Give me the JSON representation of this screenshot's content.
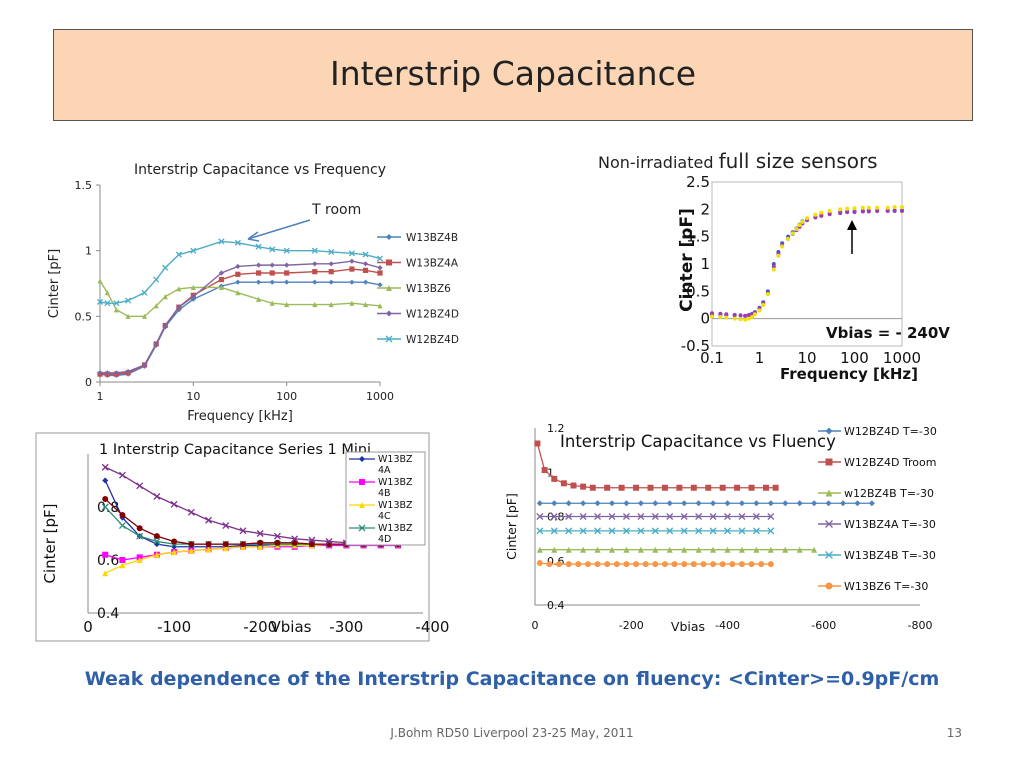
{
  "slide": {
    "title": "Interstrip Capacitance",
    "conclusion": "Weak dependence of the Interstrip Capacitance on fluency: <Cinter>=0.9pF/cm",
    "footer": "J.Bohm RD50 Liverpool 23-25 May, 2011",
    "page": "13"
  },
  "chart_data": [
    {
      "type": "line",
      "title": "Interstrip Capacitance vs Frequency",
      "xlabel": "Frequency [kHz]",
      "ylabel": "Cinter [pF]",
      "xscale": "log",
      "xlim": [
        1,
        1000
      ],
      "ylim": [
        0,
        1.5
      ],
      "xticks": [
        "1",
        "10",
        "100",
        "1000"
      ],
      "yticks": [
        "0",
        "0.5",
        "1",
        "1.5"
      ],
      "annotation": "T room",
      "legend_position": "right",
      "x": [
        1,
        1.2,
        1.5,
        2,
        3,
        4,
        5,
        7,
        10,
        20,
        30,
        50,
        70,
        100,
        200,
        300,
        500,
        700,
        1000
      ],
      "series": [
        {
          "name": "W13BZ4B",
          "color": "#4f81bd",
          "marker": "diamond",
          "values": [
            0.06,
            0.05,
            0.05,
            0.06,
            0.12,
            0.28,
            0.42,
            0.55,
            0.63,
            0.73,
            0.76,
            0.76,
            0.76,
            0.76,
            0.76,
            0.76,
            0.76,
            0.76,
            0.74
          ]
        },
        {
          "name": "W13BZ4A",
          "color": "#c0504d",
          "marker": "square",
          "values": [
            0.06,
            0.06,
            0.06,
            0.07,
            0.13,
            0.29,
            0.43,
            0.57,
            0.66,
            0.78,
            0.82,
            0.83,
            0.83,
            0.83,
            0.84,
            0.84,
            0.86,
            0.85,
            0.83
          ]
        },
        {
          "name": "W13BZ6",
          "color": "#9bbb59",
          "marker": "triangle",
          "values": [
            0.77,
            0.68,
            0.55,
            0.5,
            0.5,
            0.58,
            0.65,
            0.71,
            0.72,
            0.72,
            0.68,
            0.63,
            0.6,
            0.59,
            0.59,
            0.59,
            0.6,
            0.59,
            0.58
          ]
        },
        {
          "name": "W12BZ4D",
          "color": "#8064a2",
          "marker": "diamond",
          "values": [
            0.07,
            0.07,
            0.07,
            0.08,
            0.13,
            0.29,
            0.43,
            0.57,
            0.65,
            0.83,
            0.88,
            0.89,
            0.89,
            0.89,
            0.9,
            0.9,
            0.92,
            0.9,
            0.87
          ]
        },
        {
          "name": "W12BZ4D",
          "color": "#4bacc6",
          "marker": "x",
          "values": [
            0.61,
            0.6,
            0.6,
            0.62,
            0.68,
            0.78,
            0.87,
            0.97,
            1.0,
            1.07,
            1.06,
            1.03,
            1.01,
            1.0,
            1.0,
            0.99,
            0.98,
            0.97,
            0.94
          ]
        }
      ]
    },
    {
      "type": "scatter",
      "title": "Non-irradiated full size sensors",
      "title_part1": "Non-irradiated",
      "title_part2": "full size sensors",
      "xlabel": "Frequency [kHz]",
      "ylabel": "Cinter  [pF]",
      "xscale": "log",
      "xlim": [
        0.1,
        1000
      ],
      "ylim": [
        -0.5,
        2.5
      ],
      "xticks": [
        "0.1",
        "1",
        "10",
        "100",
        "1000"
      ],
      "yticks": [
        "-0.5",
        "0",
        "0.5",
        "1",
        "1.5",
        "2",
        "2.5"
      ],
      "annotation": "Vbias = - 240V",
      "x": [
        0.1,
        0.15,
        0.2,
        0.3,
        0.4,
        0.5,
        0.6,
        0.7,
        0.8,
        1,
        1.2,
        1.5,
        2,
        2.5,
        3,
        4,
        5,
        6,
        7,
        8,
        10,
        15,
        20,
        30,
        50,
        70,
        100,
        150,
        200,
        300,
        500,
        700,
        1000
      ],
      "series": [
        {
          "name": "",
          "color": "#3b5fc0",
          "values": [
            0.07,
            0.07,
            0.06,
            0.06,
            0.06,
            0.05,
            0.07,
            0.09,
            0.12,
            0.2,
            0.3,
            0.5,
            1.0,
            1.22,
            1.38,
            1.5,
            1.58,
            1.65,
            1.72,
            1.78,
            1.82,
            1.87,
            1.9,
            1.93,
            1.95,
            1.96,
            1.97,
            1.97,
            1.98,
            1.98,
            1.98,
            1.98,
            1.98
          ]
        },
        {
          "name": "",
          "color": "#a03ab8",
          "values": [
            0.1,
            0.09,
            0.08,
            0.07,
            0.06,
            0.05,
            0.06,
            0.08,
            0.11,
            0.18,
            0.28,
            0.46,
            0.95,
            1.18,
            1.34,
            1.46,
            1.55,
            1.62,
            1.68,
            1.74,
            1.8,
            1.85,
            1.88,
            1.91,
            1.93,
            1.95,
            1.95,
            1.96,
            1.96,
            1.97,
            1.97,
            1.97,
            1.97
          ]
        },
        {
          "name": "",
          "color": "#f2e000",
          "values": [
            0.04,
            0.03,
            0.02,
            0.0,
            -0.01,
            -0.02,
            0.0,
            0.03,
            0.08,
            0.15,
            0.25,
            0.45,
            0.9,
            1.15,
            1.32,
            1.46,
            1.56,
            1.64,
            1.71,
            1.77,
            1.84,
            1.9,
            1.94,
            1.97,
            2.0,
            2.01,
            2.02,
            2.03,
            2.03,
            2.03,
            2.03,
            2.04,
            2.04
          ]
        }
      ]
    },
    {
      "type": "line",
      "title": "Interstrip Capacitance Series 1 Mini",
      "title_prefix": "1",
      "xlabel": "Vbias",
      "ylabel": "Cinter [pF]",
      "xlim": [
        0,
        -400
      ],
      "ylim": [
        0.4,
        1.0
      ],
      "xticks": [
        "0",
        "-100",
        "-200",
        "-300",
        "-400"
      ],
      "ytick_labels": [
        "0.4",
        "0.6",
        "0.8"
      ],
      "legend_position": "top-right",
      "x": [
        -20,
        -40,
        -60,
        -80,
        -100,
        -120,
        -140,
        -160,
        -180,
        -200,
        -220,
        -240,
        -260,
        -280,
        -300,
        -320,
        -340,
        -360
      ],
      "series": [
        {
          "name": "W13BZ 4A",
          "name_lines": [
            "W13BZ",
            "4A"
          ],
          "color": "#1f2fa8",
          "marker": "diamond",
          "values": [
            0.9,
            0.76,
            0.69,
            0.66,
            0.65,
            0.65,
            0.65,
            0.65,
            0.655,
            0.655,
            0.66,
            0.66,
            0.66,
            0.66,
            0.66,
            0.66,
            0.66,
            0.66
          ]
        },
        {
          "name": "W13BZ 4B",
          "name_lines": [
            "W13BZ",
            "4B"
          ],
          "color": "#ff00ff",
          "marker": "square",
          "values": [
            0.62,
            0.6,
            0.61,
            0.62,
            0.63,
            0.635,
            0.64,
            0.645,
            0.65,
            0.65,
            0.65,
            0.65,
            0.655,
            0.655,
            0.655,
            0.655,
            0.655,
            0.655
          ]
        },
        {
          "name": "W13BZ 4C",
          "name_lines": [
            "W13BZ",
            "4C"
          ],
          "color": "#ffd700",
          "marker": "triangle",
          "values": [
            0.55,
            0.58,
            0.6,
            0.62,
            0.63,
            0.635,
            0.64,
            0.645,
            0.65,
            0.65,
            0.655,
            0.655,
            0.655,
            0.66,
            0.66,
            0.66,
            0.66,
            0.66
          ]
        },
        {
          "name": "W13BZ 4D",
          "name_lines": [
            "W13BZ",
            "4D"
          ],
          "color": "#2e8b7a",
          "marker": "x",
          "values": [
            0.8,
            0.73,
            0.69,
            0.67,
            0.66,
            0.66,
            0.66,
            0.66,
            0.66,
            0.66,
            0.66,
            0.66,
            0.66,
            0.66,
            0.66,
            0.66,
            0.66,
            0.66
          ]
        },
        {
          "name": "",
          "color": "#800000",
          "marker": "circle",
          "values": [
            0.83,
            0.77,
            0.72,
            0.69,
            0.67,
            0.66,
            0.66,
            0.66,
            0.66,
            0.665,
            0.665,
            0.665,
            0.66,
            0.66,
            0.66,
            0.66,
            0.66,
            0.66
          ]
        },
        {
          "name": "",
          "color": "#7d2e8c",
          "marker": "x",
          "values": [
            0.95,
            0.92,
            0.88,
            0.84,
            0.81,
            0.78,
            0.75,
            0.73,
            0.71,
            0.7,
            0.69,
            0.68,
            0.675,
            0.67,
            0.665,
            0.66,
            0.66,
            0.66
          ]
        }
      ]
    },
    {
      "type": "line",
      "title": "Interstrip Capacitance vs Fluency",
      "xlabel": "Vbias",
      "ylabel": "Cinter [pF]",
      "xlim": [
        0,
        -800
      ],
      "ylim": [
        0.4,
        1.2
      ],
      "xticks": [
        "0",
        "-200",
        "-400",
        "-600",
        "-800"
      ],
      "yticks": [
        "0.4",
        "0.6",
        "0.8",
        "1",
        "1.2"
      ],
      "legend_position": "right",
      "series": [
        {
          "name": "W12BZ4D T=-30",
          "color": "#4f81bd",
          "marker": "diamond",
          "x": [
            -10,
            -40,
            -70,
            -100,
            -130,
            -160,
            -190,
            -220,
            -250,
            -280,
            -310,
            -340,
            -370,
            -400,
            -430,
            -460,
            -490,
            -520,
            -550,
            -580,
            -610,
            -640,
            -670,
            -700
          ],
          "values": [
            0.86,
            0.86,
            0.86,
            0.86,
            0.86,
            0.86,
            0.86,
            0.86,
            0.86,
            0.86,
            0.86,
            0.86,
            0.86,
            0.86,
            0.86,
            0.86,
            0.86,
            0.86,
            0.86,
            0.86,
            0.86,
            0.86,
            0.86,
            0.86
          ]
        },
        {
          "name": "W12BZ4D Troom",
          "color": "#c0504d",
          "marker": "square",
          "x": [
            -5,
            -20,
            -40,
            -60,
            -80,
            -100,
            -120,
            -150,
            -180,
            -210,
            -240,
            -270,
            -300,
            -330,
            -360,
            -390,
            -420,
            -450,
            -480,
            -500
          ],
          "values": [
            1.13,
            1.01,
            0.97,
            0.95,
            0.94,
            0.935,
            0.93,
            0.93,
            0.93,
            0.93,
            0.93,
            0.93,
            0.93,
            0.93,
            0.93,
            0.93,
            0.93,
            0.93,
            0.93,
            0.93
          ]
        },
        {
          "name": "w12BZ4B T=-30",
          "color": "#9bbb59",
          "marker": "triangle",
          "x": [
            -10,
            -40,
            -70,
            -100,
            -130,
            -160,
            -190,
            -220,
            -250,
            -280,
            -310,
            -340,
            -370,
            -400,
            -430,
            -460,
            -490,
            -520,
            -550,
            -580
          ],
          "values": [
            0.65,
            0.65,
            0.65,
            0.65,
            0.65,
            0.65,
            0.65,
            0.65,
            0.65,
            0.65,
            0.65,
            0.65,
            0.65,
            0.65,
            0.65,
            0.65,
            0.65,
            0.65,
            0.65,
            0.65
          ]
        },
        {
          "name": "W13BZ4A T=-30",
          "color": "#8064a2",
          "marker": "x",
          "x": [
            -10,
            -40,
            -70,
            -100,
            -130,
            -160,
            -190,
            -220,
            -250,
            -280,
            -310,
            -340,
            -370,
            -400,
            -430,
            -460,
            -490
          ],
          "values": [
            0.8,
            0.8,
            0.8,
            0.8,
            0.8,
            0.8,
            0.8,
            0.8,
            0.8,
            0.8,
            0.8,
            0.8,
            0.8,
            0.8,
            0.8,
            0.8,
            0.8
          ]
        },
        {
          "name": "W13BZ4B T=-30",
          "color": "#4bacc6",
          "marker": "x",
          "x": [
            -10,
            -40,
            -70,
            -100,
            -130,
            -160,
            -190,
            -220,
            -250,
            -280,
            -310,
            -340,
            -370,
            -400,
            -430,
            -460,
            -490
          ],
          "values": [
            0.735,
            0.735,
            0.735,
            0.735,
            0.735,
            0.735,
            0.735,
            0.735,
            0.735,
            0.735,
            0.735,
            0.735,
            0.735,
            0.735,
            0.735,
            0.735,
            0.735
          ]
        },
        {
          "name": "W13BZ6 T=-30",
          "color": "#f79646",
          "marker": "circle",
          "x": [
            -10,
            -30,
            -50,
            -70,
            -90,
            -110,
            -130,
            -150,
            -170,
            -190,
            -210,
            -230,
            -250,
            -270,
            -290,
            -310,
            -330,
            -350,
            -370,
            -390,
            -410,
            -430,
            -450,
            -470,
            -490
          ],
          "values": [
            0.59,
            0.585,
            0.585,
            0.585,
            0.585,
            0.585,
            0.585,
            0.585,
            0.585,
            0.585,
            0.585,
            0.585,
            0.585,
            0.585,
            0.585,
            0.585,
            0.585,
            0.585,
            0.585,
            0.585,
            0.585,
            0.585,
            0.585,
            0.585,
            0.585
          ]
        }
      ]
    }
  ]
}
